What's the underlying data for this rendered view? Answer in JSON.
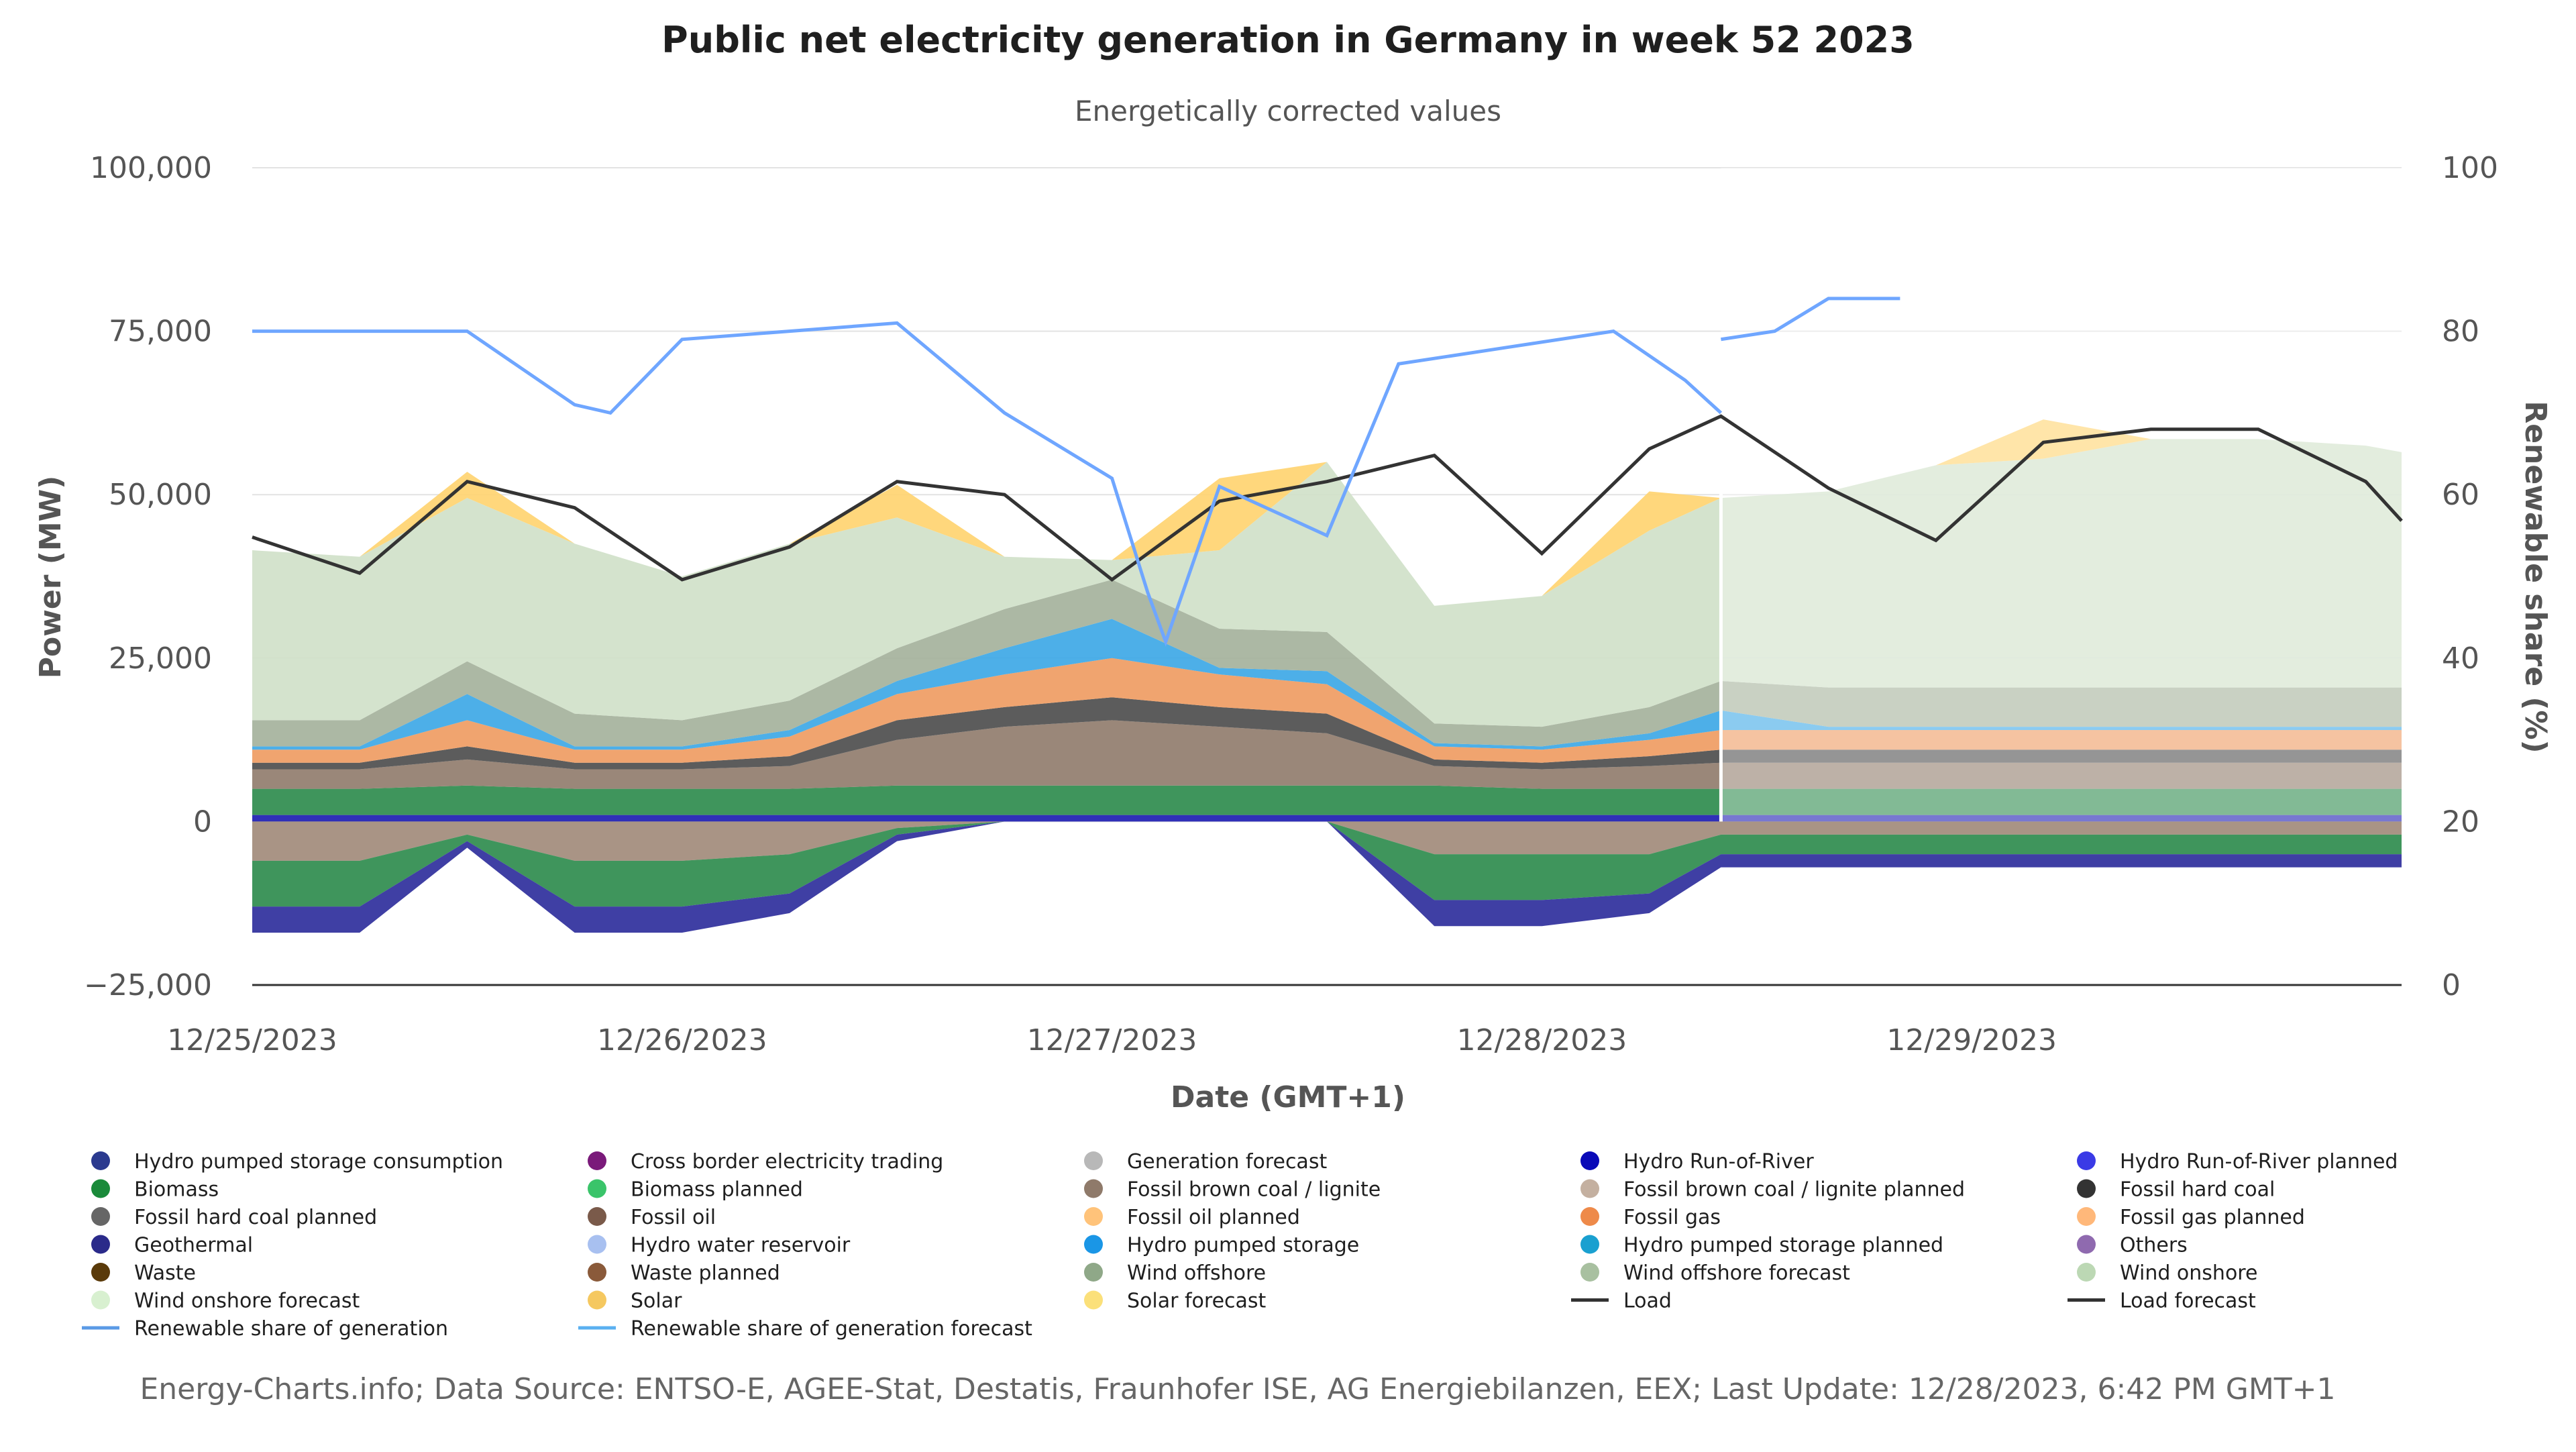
{
  "chart_data": {
    "type": "area",
    "title": "Public net electricity generation in Germany in week 52 2023",
    "subtitle": "Energetically corrected values",
    "xlabel": "Date (GMT+1)",
    "ylabel": "Power (MW)",
    "y2label": "Renewable share (%)",
    "ylim": [
      -25000,
      100000
    ],
    "y2lim": [
      0,
      100
    ],
    "xlim": [
      0,
      120
    ],
    "forecast_start_hour": 82,
    "yticks": [
      {
        "value": -25000,
        "label": "−25,000"
      },
      {
        "value": 0,
        "label": "0"
      },
      {
        "value": 25000,
        "label": "25,000"
      },
      {
        "value": 50000,
        "label": "50,000"
      },
      {
        "value": 75000,
        "label": "75,000"
      },
      {
        "value": 100000,
        "label": "100,000"
      }
    ],
    "y2ticks": [
      {
        "value": 0,
        "label": "0"
      },
      {
        "value": 20,
        "label": "20"
      },
      {
        "value": 40,
        "label": "40"
      },
      {
        "value": 60,
        "label": "60"
      },
      {
        "value": 80,
        "label": "80"
      },
      {
        "value": 100,
        "label": "100"
      }
    ],
    "xticks": [
      {
        "value": 0,
        "label": "12/25/2023"
      },
      {
        "value": 24,
        "label": "12/26/2023"
      },
      {
        "value": 48,
        "label": "12/27/2023"
      },
      {
        "value": 72,
        "label": "12/28/2023"
      },
      {
        "value": 96,
        "label": "12/29/2023"
      }
    ],
    "hours": [
      0,
      6,
      12,
      18,
      24,
      30,
      36,
      42,
      48,
      54,
      60,
      66,
      72,
      78,
      82,
      88,
      94,
      100,
      106,
      112,
      118,
      120
    ],
    "positive_layers": [
      {
        "name": "Hydro Run-of-River",
        "color": "#1a1ab0",
        "values": [
          1000,
          1000,
          1000,
          1000,
          1000,
          1000,
          1000,
          1000,
          1000,
          1000,
          1000,
          1000,
          1000,
          1000,
          1000,
          1000,
          1000,
          1000,
          1000,
          1000,
          1000,
          1000
        ]
      },
      {
        "name": "Biomass",
        "color": "#2a8a4a",
        "values": [
          4000,
          4000,
          4500,
          4000,
          4000,
          4000,
          4500,
          4500,
          4500,
          4500,
          4500,
          4500,
          4000,
          4000,
          4000,
          4000,
          4000,
          4000,
          4000,
          4000,
          4000,
          4000
        ]
      },
      {
        "name": "Fossil brown coal / lignite",
        "color": "#8f7a6a",
        "values": [
          3000,
          3000,
          4000,
          3000,
          3000,
          3500,
          7000,
          9000,
          10000,
          9000,
          8000,
          3000,
          3000,
          3500,
          4000,
          4000,
          4000,
          4000,
          4000,
          4000,
          4000,
          4000
        ]
      },
      {
        "name": "Fossil hard coal",
        "color": "#4a4a4a",
        "values": [
          1000,
          1000,
          2000,
          1000,
          1000,
          1500,
          3000,
          3000,
          3500,
          3000,
          3000,
          1000,
          1000,
          1500,
          2000,
          2000,
          2000,
          2000,
          2000,
          2000,
          2000,
          2000
        ]
      },
      {
        "name": "Fossil gas",
        "color": "#ee9a5f",
        "values": [
          2000,
          2000,
          4000,
          2000,
          2000,
          3000,
          4000,
          5000,
          6000,
          5000,
          4500,
          2000,
          2000,
          2500,
          3000,
          3000,
          3000,
          3000,
          3000,
          3000,
          3000,
          3000
        ]
      },
      {
        "name": "Hydro pumped storage",
        "color": "#3aa6e6",
        "values": [
          500,
          500,
          4000,
          500,
          500,
          1000,
          2000,
          4000,
          6000,
          1000,
          2000,
          500,
          500,
          1000,
          3000,
          500,
          500,
          500,
          500,
          500,
          500,
          500
        ]
      },
      {
        "name": "Wind offshore",
        "color": "#a3b09a",
        "values": [
          4000,
          4000,
          5000,
          5000,
          4000,
          4500,
          5000,
          6000,
          6000,
          6000,
          6000,
          3000,
          3000,
          4000,
          4500,
          6000,
          6000,
          6000,
          6000,
          6000,
          6000,
          6000
        ]
      },
      {
        "name": "Wind onshore",
        "color": "#cfe0c8",
        "values": [
          26000,
          25000,
          25000,
          26000,
          22000,
          24000,
          20000,
          8000,
          3000,
          12000,
          26000,
          18000,
          20000,
          27000,
          28000,
          30000,
          34000,
          35000,
          38000,
          38000,
          37000,
          36000
        ]
      },
      {
        "name": "Solar",
        "color": "#ffd36e",
        "values": [
          0,
          0,
          4000,
          0,
          0,
          0,
          5000,
          0,
          0,
          11000,
          0,
          0,
          0,
          6000,
          0,
          0,
          0,
          6000,
          0,
          0,
          0,
          0
        ]
      }
    ],
    "negative_layers": [
      {
        "name": "Fossil brown coal / lignite",
        "color": "#a08878",
        "values": [
          6000,
          6000,
          2000,
          6000,
          6000,
          5000,
          1000,
          0,
          0,
          0,
          0,
          5000,
          5000,
          5000,
          2000,
          2000,
          2000,
          2000,
          2000,
          2000,
          2000,
          2000
        ]
      },
      {
        "name": "Biomass",
        "color": "#2a8a4a",
        "values": [
          7000,
          7000,
          1000,
          7000,
          7000,
          6000,
          1000,
          0,
          0,
          0,
          0,
          7000,
          7000,
          6000,
          3000,
          3000,
          3000,
          3000,
          3000,
          3000,
          3000,
          3000
        ]
      },
      {
        "name": "Hydro pumped storage consumption",
        "color": "#2a2a9a",
        "values": [
          4000,
          4000,
          1000,
          4000,
          4000,
          3000,
          1000,
          0,
          0,
          0,
          0,
          4000,
          4000,
          3000,
          2000,
          2000,
          2000,
          2000,
          2000,
          2000,
          2000,
          2000
        ]
      }
    ],
    "load": {
      "name": "Load",
      "color": "#333333",
      "values": [
        43500,
        38000,
        52000,
        48000,
        37000,
        42000,
        52000,
        50000,
        37000,
        49000,
        52000,
        56000,
        41000,
        57000,
        62000,
        51000,
        43000,
        58000,
        60000,
        60000,
        52000,
        46000
      ]
    },
    "renewable_share": {
      "name": "Renewable share of generation",
      "color": "#6fa6ff",
      "hours": [
        0,
        6,
        12,
        18,
        20,
        24,
        30,
        36,
        42,
        48,
        50,
        51,
        54,
        60,
        64,
        70,
        76,
        80,
        82
      ],
      "values": [
        80,
        80,
        80,
        71,
        70,
        79,
        80,
        81,
        70,
        62,
        48,
        42,
        61,
        55,
        76,
        78,
        80,
        74,
        70
      ]
    },
    "renewable_share_forecast": {
      "name": "Renewable share of generation forecast",
      "color": "#6fa6ff",
      "hours": [
        82,
        85,
        88,
        92
      ],
      "values": [
        79,
        80,
        84,
        84
      ]
    },
    "legend": [
      {
        "label": "Hydro pumped storage consumption",
        "color": "#2b3a8f",
        "kind": "dot"
      },
      {
        "label": "Cross border electricity trading",
        "color": "#7a1a7a",
        "kind": "dot"
      },
      {
        "label": "Generation forecast",
        "color": "#b8b8b8",
        "kind": "dot"
      },
      {
        "label": "Hydro Run-of-River",
        "color": "#0a0ab8",
        "kind": "dot"
      },
      {
        "label": "Hydro Run-of-River planned",
        "color": "#3a3ae6",
        "kind": "dot"
      },
      {
        "label": "Biomass",
        "color": "#1a8a3a",
        "kind": "dot"
      },
      {
        "label": "Biomass planned",
        "color": "#3ac46a",
        "kind": "dot"
      },
      {
        "label": "Fossil brown coal / lignite",
        "color": "#8f7a6a",
        "kind": "dot"
      },
      {
        "label": "Fossil brown coal / lignite planned",
        "color": "#c4b0a0",
        "kind": "dot"
      },
      {
        "label": "Fossil hard coal",
        "color": "#333333",
        "kind": "dot"
      },
      {
        "label": "Fossil hard coal planned",
        "color": "#666666",
        "kind": "dot"
      },
      {
        "label": "Fossil oil",
        "color": "#7a5a4a",
        "kind": "dot"
      },
      {
        "label": "Fossil oil planned",
        "color": "#ffc37a",
        "kind": "dot"
      },
      {
        "label": "Fossil gas",
        "color": "#ee8a4a",
        "kind": "dot"
      },
      {
        "label": "Fossil gas planned",
        "color": "#ffb87a",
        "kind": "dot"
      },
      {
        "label": "Geothermal",
        "color": "#2a2a8a",
        "kind": "dot"
      },
      {
        "label": "Hydro water reservoir",
        "color": "#a8c0f0",
        "kind": "dot"
      },
      {
        "label": "Hydro pumped storage",
        "color": "#1a96e6",
        "kind": "dot"
      },
      {
        "label": "Hydro pumped storage planned",
        "color": "#1aa0d0",
        "kind": "dot"
      },
      {
        "label": "Others",
        "color": "#8f6aaf",
        "kind": "dot"
      },
      {
        "label": "Waste",
        "color": "#5a3a0a",
        "kind": "dot"
      },
      {
        "label": "Waste planned",
        "color": "#8a5a3a",
        "kind": "dot"
      },
      {
        "label": "Wind offshore",
        "color": "#8fa888",
        "kind": "dot"
      },
      {
        "label": "Wind offshore forecast",
        "color": "#a8c0a0",
        "kind": "dot"
      },
      {
        "label": "Wind onshore",
        "color": "#bcd8b4",
        "kind": "dot"
      },
      {
        "label": "Wind onshore forecast",
        "color": "#d8f0d0",
        "kind": "dot"
      },
      {
        "label": "Solar",
        "color": "#f5c860",
        "kind": "dot"
      },
      {
        "label": "Solar forecast",
        "color": "#fbe07a",
        "kind": "dot"
      },
      {
        "label": "Load",
        "color": "#333333",
        "kind": "line"
      },
      {
        "label": "Load forecast",
        "color": "#333333",
        "kind": "line"
      },
      {
        "label": "Renewable share of generation",
        "color": "#5a9ae6",
        "kind": "line"
      },
      {
        "label": "Renewable share of generation forecast",
        "color": "#5ab0f0",
        "kind": "line"
      }
    ]
  },
  "footer": "Energy-Charts.info; Data Source: ENTSO-E, AGEE-Stat, Destatis, Fraunhofer ISE, AG Energiebilanzen, EEX; Last Update: 12/28/2023, 6:42 PM GMT+1"
}
